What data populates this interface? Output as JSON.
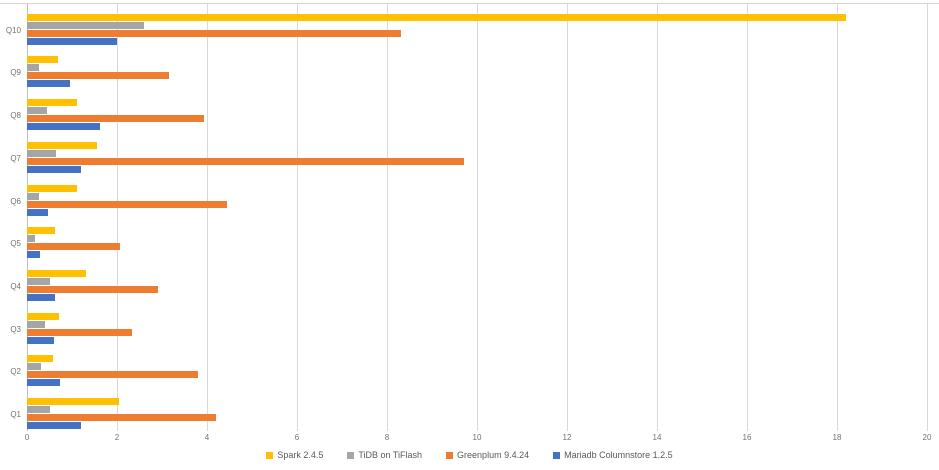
{
  "chart_data": {
    "type": "bar",
    "orientation": "horizontal",
    "title": "",
    "xlabel": "",
    "ylabel": "",
    "xlim": [
      0,
      20
    ],
    "x_ticks": [
      0,
      2,
      4,
      6,
      8,
      10,
      12,
      14,
      16,
      18,
      20
    ],
    "grid": true,
    "legend_position": "bottom",
    "categories_top_to_bottom": [
      "Q10",
      "Q9",
      "Q8",
      "Q7",
      "Q6",
      "Q5",
      "Q4",
      "Q3",
      "Q2",
      "Q1"
    ],
    "series": [
      {
        "name": "Spark 2.4.5",
        "color": "#FFC000",
        "values": [
          18.2,
          0.68,
          1.1,
          1.55,
          1.1,
          0.62,
          1.3,
          0.7,
          0.57,
          2.05
        ]
      },
      {
        "name": "TiDB on TiFlash",
        "color": "#A5A5A5",
        "values": [
          2.6,
          0.27,
          0.45,
          0.65,
          0.27,
          0.18,
          0.5,
          0.4,
          0.3,
          0.5
        ]
      },
      {
        "name": "Greenplum 9.4.24",
        "color": "#ED7D31",
        "values": [
          8.3,
          3.15,
          3.93,
          9.7,
          4.45,
          2.06,
          2.92,
          2.33,
          3.8,
          4.2
        ]
      },
      {
        "name": "Mariadb Columnstore 1.2.5",
        "color": "#4472C4",
        "values": [
          2.0,
          0.95,
          1.62,
          1.2,
          0.47,
          0.28,
          0.62,
          0.6,
          0.74,
          1.2
        ]
      }
    ]
  },
  "colors": {
    "background": "#FFFFFF",
    "gridline": "#D9D9D9",
    "axis_line": "#BFBFBF",
    "tick_text": "#737373",
    "legend_text": "#595959"
  }
}
